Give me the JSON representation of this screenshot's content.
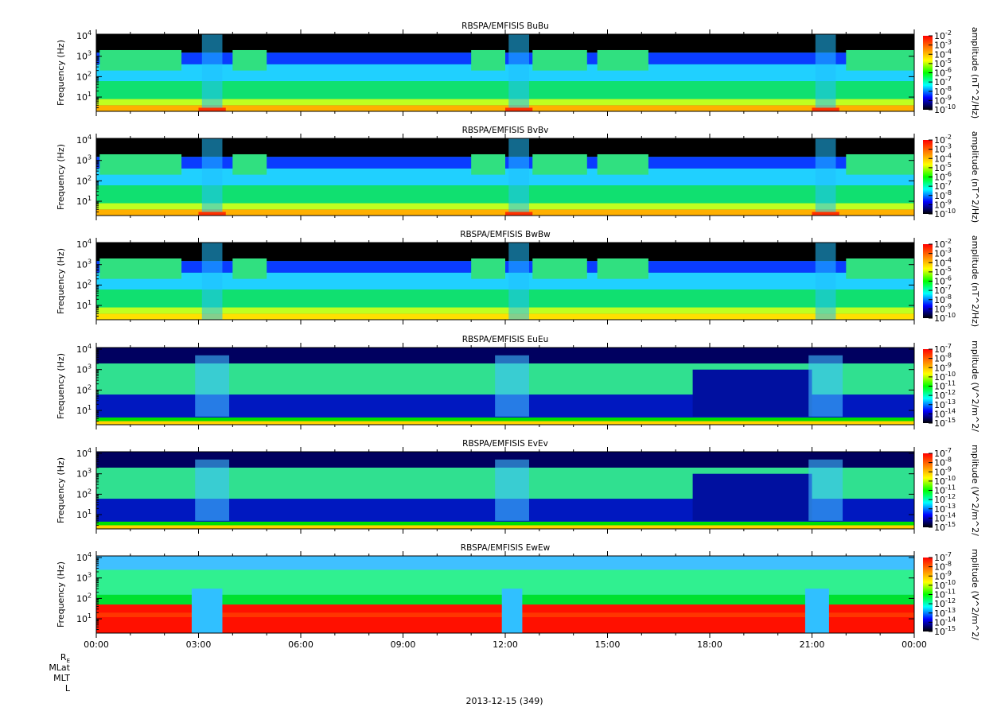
{
  "chart_data": {
    "type": "heatmap",
    "x_tick_labels": [
      "00:00",
      "03:00",
      "06:00",
      "09:00",
      "12:00",
      "15:00",
      "18:00",
      "21:00",
      "00:00"
    ],
    "x_range_hours": [
      0,
      24
    ],
    "orbit_labels": [
      "RE",
      "MLat",
      "MLT",
      "L"
    ],
    "date_label": "2013-12-15 (349)",
    "y_scale": "log",
    "y_range_hz": [
      2,
      12000
    ],
    "y_ticks": [
      10,
      100,
      1000,
      10000
    ],
    "y_tick_base": "10",
    "y_tick_exps": [
      "1",
      "2",
      "3",
      "4"
    ],
    "colormap": [
      "#000000",
      "#0000ff",
      "#00ffff",
      "#00ff00",
      "#ffff00",
      "#ff8000",
      "#ff0000"
    ],
    "panels": [
      {
        "title": "RBSPA/EMFISIS  BuBu",
        "ylabel": "Frequency (Hz)",
        "cb_label": "amplitude (nT^2/Hz)",
        "cb_exps": [
          "-2",
          "-3",
          "-4",
          "-5",
          "-6",
          "-7",
          "-8",
          "-9",
          "-10"
        ],
        "cb_range_log": [
          -10,
          -2
        ],
        "kind": "B"
      },
      {
        "title": "RBSPA/EMFISIS  BvBv",
        "ylabel": "Frequency (Hz)",
        "cb_label": "amplitude (nT^2/Hz)",
        "cb_exps": [
          "-2",
          "-3",
          "-4",
          "-5",
          "-6",
          "-7",
          "-8",
          "-9",
          "-10"
        ],
        "cb_range_log": [
          -10,
          -2
        ],
        "kind": "B"
      },
      {
        "title": "RBSPA/EMFISIS  BwBw",
        "ylabel": "Frequency (Hz)",
        "cb_label": "amplitude (nT^2/Hz)",
        "cb_exps": [
          "-2",
          "-3",
          "-4",
          "-5",
          "-6",
          "-7",
          "-8",
          "-9",
          "-10"
        ],
        "cb_range_log": [
          -10,
          -2
        ],
        "kind": "Bw"
      },
      {
        "title": "RBSPA/EMFISIS  EuEu",
        "ylabel": "Frequency (Hz)",
        "cb_label": "mplitude (V^2/m^2/",
        "cb_exps": [
          "-7",
          "-8",
          "-9",
          "-10",
          "-11",
          "-12",
          "-13",
          "-14",
          "-15"
        ],
        "cb_range_log": [
          -15,
          -7
        ],
        "kind": "E"
      },
      {
        "title": "RBSPA/EMFISIS  EvEv",
        "ylabel": "Frequency (Hz)",
        "cb_label": "mplitude (V^2/m^2/",
        "cb_exps": [
          "-7",
          "-8",
          "-9",
          "-10",
          "-11",
          "-12",
          "-13",
          "-14",
          "-15"
        ],
        "cb_range_log": [
          -15,
          -7
        ],
        "kind": "E"
      },
      {
        "title": "RBSPA/EMFISIS  EwEw",
        "ylabel": "Frequency (Hz)",
        "cb_label": "mplitude (V^2/m^2/",
        "cb_exps": [
          "-7",
          "-8",
          "-9",
          "-10",
          "-11",
          "-12",
          "-13",
          "-14",
          "-15"
        ],
        "cb_range_log": [
          -15,
          -7
        ],
        "kind": "Ew"
      }
    ]
  }
}
